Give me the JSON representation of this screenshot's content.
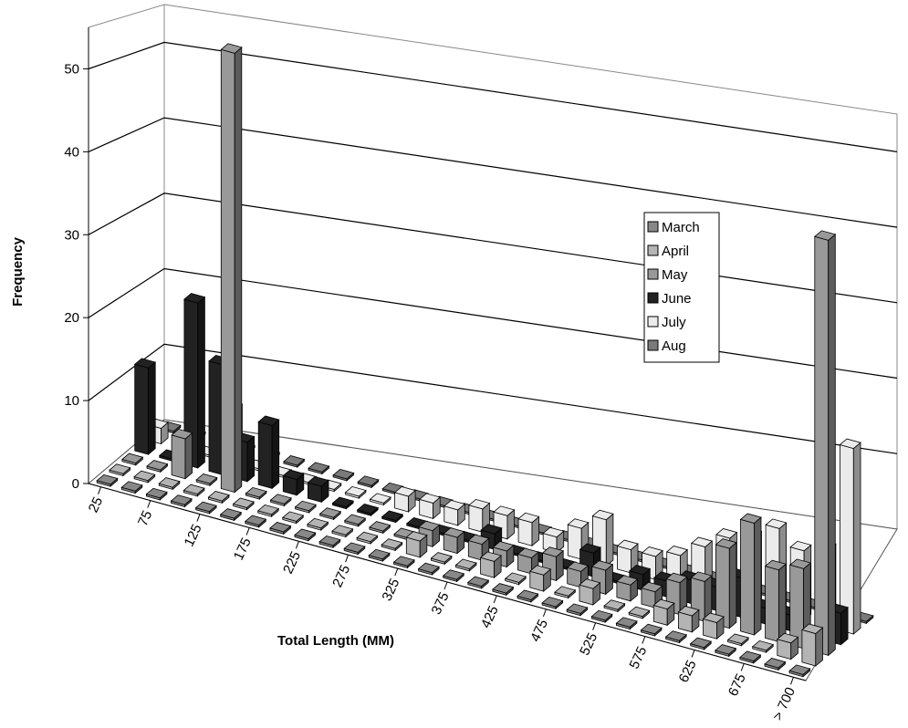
{
  "chart_data": {
    "type": "bar",
    "subtype": "3d-clustered",
    "xlabel": "Total Length (MM)",
    "ylabel": "Frequency",
    "ylim": [
      0,
      55
    ],
    "yticks": [
      0,
      10,
      20,
      30,
      40,
      50
    ],
    "categories": [
      "25",
      "50",
      "75",
      "100",
      "125",
      "150",
      "175",
      "200",
      "225",
      "250",
      "275",
      "300",
      "325",
      "350",
      "375",
      "400",
      "425",
      "450",
      "475",
      "500",
      "525",
      "550",
      "575",
      "600",
      "625",
      "650",
      "675",
      "700",
      "> 700"
    ],
    "xtick_labels": [
      "25",
      "75",
      "125",
      "175",
      "225",
      "275",
      "325",
      "375",
      "425",
      "475",
      "525",
      "575",
      "625",
      "675",
      "> 700"
    ],
    "legend": {
      "position": "right-center",
      "entries": [
        "March",
        "April",
        "May",
        "June",
        "July",
        "Aug"
      ]
    },
    "grid": true,
    "series": [
      {
        "name": "March",
        "color": "#888888",
        "values": [
          0,
          0,
          0,
          0,
          0,
          0,
          0,
          0,
          0,
          0,
          0,
          0,
          0,
          0,
          0,
          0,
          0,
          0,
          0,
          0,
          0,
          0,
          0,
          0,
          0,
          0,
          0,
          0,
          0
        ]
      },
      {
        "name": "April",
        "color": "#b4b4b4",
        "values": [
          0,
          0,
          0,
          0,
          0,
          0,
          0,
          0,
          0,
          0,
          0,
          0,
          2,
          0,
          0,
          2,
          0,
          2,
          0,
          2,
          0,
          0,
          2,
          2,
          2,
          0,
          0,
          2,
          4
        ]
      },
      {
        "name": "May",
        "color": "#999999",
        "values": [
          0,
          0,
          5,
          0,
          55,
          0,
          0,
          0,
          0,
          0,
          0,
          0,
          2,
          2,
          2,
          2,
          2,
          3,
          2,
          3,
          2,
          2,
          4,
          5,
          10,
          14,
          9,
          10,
          52
        ]
      },
      {
        "name": "June",
        "color": "#222222",
        "values": [
          11,
          0,
          21,
          14,
          5,
          8,
          2,
          2,
          0,
          0,
          0,
          0,
          0,
          0,
          2,
          0,
          0,
          0,
          3,
          0,
          2,
          2,
          3,
          3,
          5,
          2,
          2,
          0,
          4
        ]
      },
      {
        "name": "July",
        "color": "#ebebeb",
        "values": [
          2,
          0,
          0,
          7,
          0,
          0,
          0,
          0,
          0,
          0,
          2,
          2,
          2,
          3,
          3,
          3,
          2,
          4,
          6,
          3,
          3,
          4,
          6,
          8,
          9,
          11,
          9,
          10,
          24
        ]
      },
      {
        "name": "Aug",
        "color": "#7a7a7a",
        "values": [
          0,
          0,
          0,
          0,
          0,
          0,
          0,
          0,
          0,
          0,
          0,
          0,
          0,
          0,
          0,
          0,
          0,
          0,
          0,
          0,
          0,
          0,
          0,
          0,
          0,
          0,
          0,
          0,
          0
        ]
      }
    ]
  }
}
